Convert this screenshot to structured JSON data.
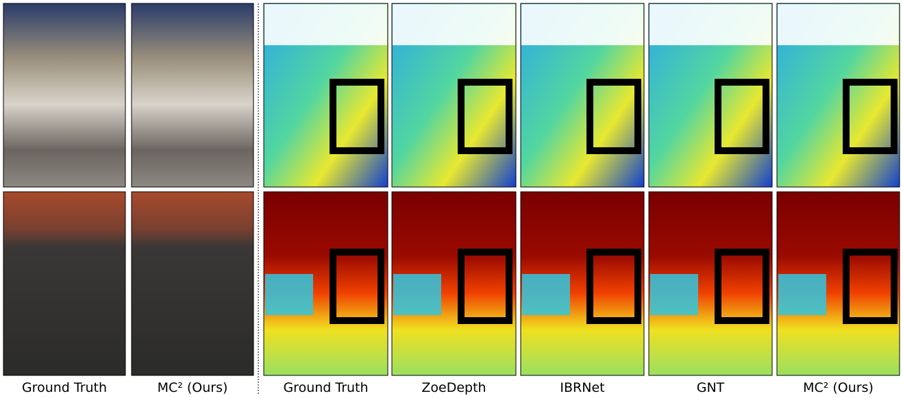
{
  "figure": {
    "captions": [
      "Ground Truth",
      "MC² (Ours)",
      "Ground Truth",
      "ZoeDepth",
      "IBRNet",
      "GNT",
      "MC² (Ours)"
    ]
  }
}
